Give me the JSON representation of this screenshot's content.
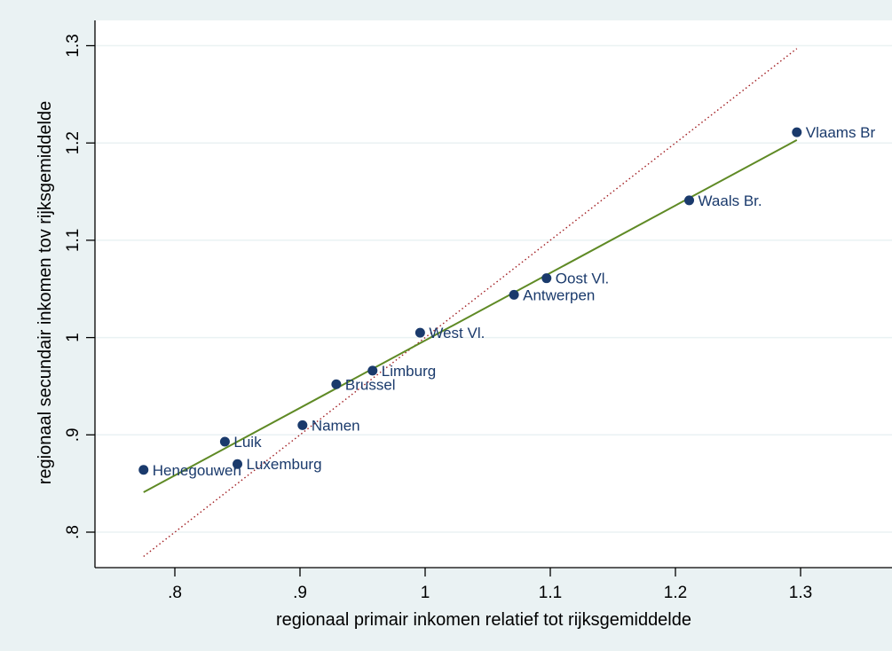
{
  "chart_data": {
    "type": "scatter",
    "xlabel": "regionaal primair inkomen relatief tot rijksgemiddelde",
    "ylabel": "regionaal secundair inkomen tov rijksgemiddelde",
    "xlim": [
      0.73,
      1.36
    ],
    "ylim": [
      0.76,
      1.31
    ],
    "xticks": [
      {
        "value": 0.8,
        "label": ".8"
      },
      {
        "value": 0.9,
        "label": ".9"
      },
      {
        "value": 1.0,
        "label": "1"
      },
      {
        "value": 1.1,
        "label": "1.1"
      },
      {
        "value": 1.2,
        "label": "1.2"
      },
      {
        "value": 1.3,
        "label": "1.3"
      }
    ],
    "yticks": [
      {
        "value": 0.8,
        "label": ".8"
      },
      {
        "value": 0.9,
        "label": ".9"
      },
      {
        "value": 1.0,
        "label": "1"
      },
      {
        "value": 1.1,
        "label": "1.1"
      },
      {
        "value": 1.2,
        "label": "1.2"
      },
      {
        "value": 1.3,
        "label": "1.3"
      }
    ],
    "grid": "horizontal",
    "points": [
      {
        "label": "Henegouwen",
        "x": 0.775,
        "y": 0.864
      },
      {
        "label": "Luik",
        "x": 0.84,
        "y": 0.893
      },
      {
        "label": "Luxemburg",
        "x": 0.85,
        "y": 0.87
      },
      {
        "label": "Namen",
        "x": 0.902,
        "y": 0.91
      },
      {
        "label": "Brussel",
        "x": 0.929,
        "y": 0.952
      },
      {
        "label": "Limburg",
        "x": 0.958,
        "y": 0.966
      },
      {
        "label": "West Vl.",
        "x": 0.996,
        "y": 1.005
      },
      {
        "label": "Antwerpen",
        "x": 1.071,
        "y": 1.044
      },
      {
        "label": "Oost Vl.",
        "x": 1.097,
        "y": 1.061
      },
      {
        "label": "Waals Br.",
        "x": 1.211,
        "y": 1.141
      },
      {
        "label": "Vlaams Br",
        "x": 1.297,
        "y": 1.211
      }
    ],
    "fit_line": {
      "x": [
        0.775,
        1.297
      ],
      "y": [
        0.841,
        1.203
      ]
    },
    "diagonal_line": {
      "x": [
        0.775,
        1.297
      ],
      "y": [
        0.775,
        1.297
      ]
    },
    "colors": {
      "background": "#eaf2f3",
      "plot_background": "#ffffff",
      "grid": "#eaf2f3",
      "marker": "#1a3a6c",
      "fit_line": "#5f8a25",
      "diagonal_line": "#a11d21"
    }
  }
}
